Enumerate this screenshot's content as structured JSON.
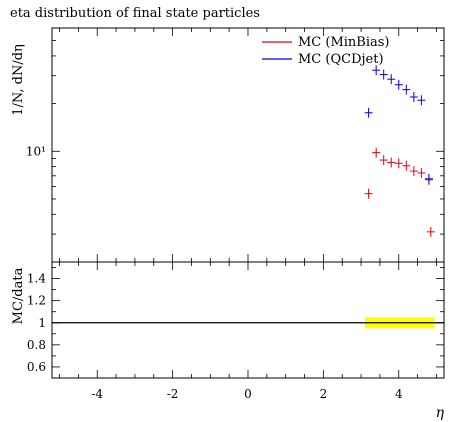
{
  "chart_data": {
    "type": "scatter",
    "title": "eta distribution of final state particles",
    "xlabel": "η",
    "ylabel": "1/N, dN/dη",
    "xlim": [
      -5.2,
      5.2
    ],
    "ylim": [
      2.0,
      60
    ],
    "ylog": true,
    "xticks": [
      "-4",
      "-2",
      "0",
      "2",
      "4"
    ],
    "yticks_main": [
      {
        "value": 10,
        "label": "10¹"
      }
    ],
    "legend_position": "top-right",
    "series": [
      {
        "name": "MC (MinBias)",
        "color": "#e8000b",
        "x": [
          3.2,
          3.4,
          3.6,
          3.8,
          4.0,
          4.2,
          4.4,
          4.6,
          4.8,
          4.85
        ],
        "y": [
          5.4,
          9.8,
          8.8,
          8.5,
          8.4,
          8.1,
          7.5,
          7.3,
          6.6,
          3.1
        ]
      },
      {
        "name": "MC (QCDjet)",
        "color": "#0000e0",
        "x": [
          3.2,
          3.4,
          3.6,
          3.8,
          4.0,
          4.2,
          4.4,
          4.6,
          4.8
        ],
        "y": [
          17.5,
          32.5,
          30.5,
          28.5,
          26.3,
          24.5,
          22.0,
          21.0,
          6.7
        ]
      }
    ],
    "ratio": {
      "ylabel": "MC/data",
      "ylim": [
        0.5,
        1.55
      ],
      "yticks": [
        "1.4",
        "1.2",
        "1",
        "0.8",
        "0.6"
      ],
      "line_value": 1.0,
      "band_x": [
        3.1,
        4.95
      ],
      "band_half_width": 0.05,
      "band_color": "#ffff00",
      "line_color": "#000000"
    }
  }
}
